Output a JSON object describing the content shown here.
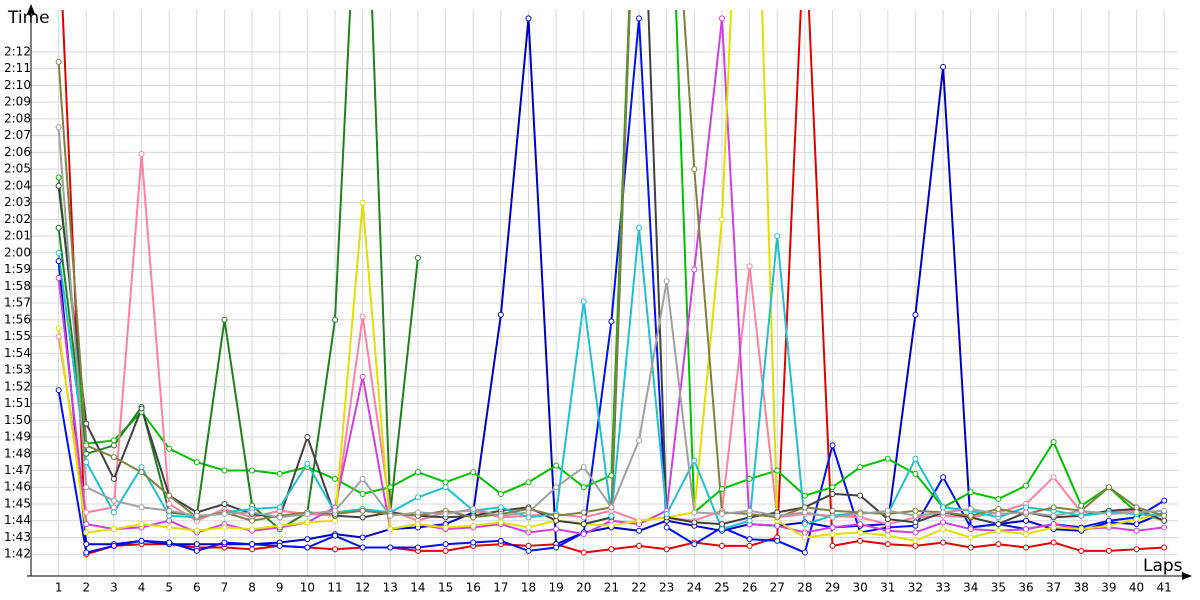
{
  "chart_data": {
    "type": "line",
    "y_label": "Time",
    "x_label": "Laps",
    "x": [
      1,
      2,
      3,
      4,
      5,
      6,
      7,
      8,
      9,
      10,
      11,
      12,
      13,
      14,
      15,
      16,
      17,
      18,
      19,
      20,
      21,
      22,
      23,
      24,
      25,
      26,
      27,
      28,
      29,
      30,
      31,
      32,
      33,
      34,
      35,
      36,
      37,
      38,
      39,
      40,
      41
    ],
    "xlim": [
      0,
      41.5
    ],
    "xticks": [
      1,
      2,
      3,
      4,
      5,
      6,
      7,
      8,
      9,
      10,
      11,
      12,
      13,
      14,
      15,
      16,
      17,
      18,
      19,
      20,
      21,
      22,
      23,
      24,
      25,
      26,
      27,
      28,
      29,
      30,
      31,
      32,
      33,
      34,
      35,
      36,
      37,
      38,
      39,
      40,
      41
    ],
    "ylim": [
      100.7,
      134.5
    ],
    "yticks": [
      {
        "value": 102,
        "label": "1:42"
      },
      {
        "value": 103,
        "label": "1:43"
      },
      {
        "value": 104,
        "label": "1:44"
      },
      {
        "value": 105,
        "label": "1:45"
      },
      {
        "value": 106,
        "label": "1:46"
      },
      {
        "value": 107,
        "label": "1:47"
      },
      {
        "value": 108,
        "label": "1:48"
      },
      {
        "value": 109,
        "label": "1:49"
      },
      {
        "value": 110,
        "label": "1:50"
      },
      {
        "value": 111,
        "label": "1:51"
      },
      {
        "value": 112,
        "label": "1:52"
      },
      {
        "value": 113,
        "label": "1:53"
      },
      {
        "value": 114,
        "label": "1:54"
      },
      {
        "value": 115,
        "label": "1:55"
      },
      {
        "value": 116,
        "label": "1:56"
      },
      {
        "value": 117,
        "label": "1:57"
      },
      {
        "value": 118,
        "label": "1:58"
      },
      {
        "value": 119,
        "label": "1:59"
      },
      {
        "value": 120,
        "label": "2:00"
      },
      {
        "value": 121,
        "label": "2:01"
      },
      {
        "value": 122,
        "label": "2:02"
      },
      {
        "value": 123,
        "label": "2:03"
      },
      {
        "value": 124,
        "label": "2:04"
      },
      {
        "value": 125,
        "label": "2:05"
      },
      {
        "value": 126,
        "label": "2:06"
      },
      {
        "value": 127,
        "label": "2:07"
      },
      {
        "value": 128,
        "label": "2:08"
      },
      {
        "value": 129,
        "label": "2:09"
      },
      {
        "value": 130,
        "label": "2:10"
      },
      {
        "value": 131,
        "label": "2:11"
      },
      {
        "value": 132,
        "label": "2:12"
      }
    ],
    "grid": true,
    "series": [
      {
        "color": "#e00000",
        "values": [
          140,
          102,
          102.5,
          102.6,
          102.6,
          102.4,
          102.4,
          102.3,
          102.5,
          102.4,
          102.3,
          102.4,
          102.4,
          102.2,
          102.2,
          102.5,
          102.6,
          102.5,
          102.6,
          102.1,
          102.3,
          102.5,
          102.3,
          102.7,
          102.5,
          102.5,
          103,
          140,
          102.5,
          102.8,
          102.6,
          102.5,
          102.7,
          102.4,
          102.6,
          102.4,
          102.7,
          102.2,
          102.2,
          102.3,
          102.4
        ]
      },
      {
        "color": "#0000c0",
        "values": [
          119.5,
          102.6,
          102.6,
          102.8,
          102.6,
          102.6,
          102.6,
          102.6,
          102.7,
          102.9,
          103.2,
          103,
          103.5,
          103.6,
          103.8,
          104.5,
          116.3,
          134,
          102.6,
          103.3,
          103.6,
          103.4,
          104,
          103.7,
          103.4,
          103.8,
          103.7,
          103.9,
          103.6,
          103.7,
          103.8,
          116.3,
          131.1,
          103.6,
          103.8,
          104,
          103.5,
          103.4,
          103.9,
          103.8,
          104.5
        ]
      },
      {
        "color": "#0010f0",
        "values": [
          111.8,
          102.1,
          102.5,
          102.8,
          102.7,
          102.2,
          102.7,
          102.6,
          102.5,
          102.4,
          103.1,
          102.4,
          102.4,
          102.4,
          102.6,
          102.7,
          102.8,
          102.2,
          102.4,
          103.3,
          115.9,
          134,
          103.6,
          102.6,
          103.6,
          102.9,
          102.8,
          102.1,
          108.5,
          103.3,
          103.6,
          103.7,
          106.6,
          103.6,
          103.8,
          103.5,
          103.8,
          103.6,
          104,
          104.2,
          105.2
        ]
      },
      {
        "color": "#00c000",
        "values": [
          124.5,
          108.6,
          108.8,
          110.5,
          108.3,
          107.5,
          107,
          107,
          106.8,
          107.2,
          106.5,
          105.6,
          106,
          106.9,
          106.3,
          106.9,
          105.6,
          106.3,
          107.3,
          106,
          106.7,
          150,
          150,
          104.5,
          105.9,
          106.5,
          107,
          105.5,
          106,
          107.2,
          107.7,
          106.8,
          104.8,
          105.7,
          105.3,
          106.1,
          108.7,
          104.9,
          106,
          104.5,
          104
        ]
      },
      {
        "color": "#208020",
        "values": [
          121.5,
          108,
          108.5,
          110.8,
          104.5,
          104.3,
          116,
          104.9,
          103.5,
          104.5,
          116,
          150,
          104.5,
          119.7,
          null,
          null,
          null,
          null,
          null,
          null,
          null,
          null,
          null,
          null,
          null,
          null,
          null,
          null,
          null,
          null,
          null,
          null,
          null,
          null,
          null,
          null,
          null,
          null,
          null,
          null,
          null
        ]
      },
      {
        "color": "#ff80a0",
        "values": [
          115,
          104.5,
          104.8,
          125.9,
          105,
          104,
          104.7,
          104.2,
          104.6,
          104.4,
          104.3,
          116.2,
          104.6,
          104,
          104.5,
          104.6,
          104.2,
          104.3,
          104.4,
          104.2,
          104.6,
          104,
          104.2,
          104,
          104.6,
          119.2,
          104.2,
          104.4,
          104.3,
          104.2,
          103.8,
          104.2,
          104.3,
          104.2,
          104.5,
          105,
          106.6,
          104.5,
          104.5,
          104.6,
          104
        ]
      },
      {
        "color": "#d040e0",
        "values": [
          118.5,
          103.8,
          103.5,
          103.6,
          104,
          103.3,
          103.8,
          103.4,
          103.6,
          103.9,
          104.8,
          112.6,
          103.5,
          103.8,
          103.5,
          103.6,
          103.8,
          103.3,
          103.5,
          103.2,
          104,
          103.8,
          104.6,
          119,
          134,
          103.8,
          103.7,
          103.3,
          103.6,
          103.8,
          103.4,
          103.3,
          103.9,
          103.5,
          103.4,
          103.5,
          103.8,
          103.5,
          103.6,
          103.4,
          103.6
        ]
      },
      {
        "color": "#e0e000",
        "values": [
          115.5,
          103.3,
          103.5,
          103.8,
          103.6,
          103.4,
          103.6,
          103.5,
          103.7,
          103.9,
          104,
          123,
          103.5,
          103.8,
          103.6,
          103.7,
          103.9,
          103.6,
          104,
          103.8,
          103.7,
          104,
          104.2,
          104.5,
          122,
          160,
          104,
          103,
          103.2,
          103.3,
          103.1,
          102.8,
          103.5,
          103,
          103.4,
          103.2,
          103.6,
          103.5,
          103.7,
          104.1,
          104.4
        ]
      },
      {
        "color": "#404040",
        "values": [
          124,
          109.8,
          106.5,
          110.7,
          105.5,
          104.5,
          105,
          104.4,
          104.2,
          109,
          104.3,
          104.2,
          104.5,
          104.3,
          104.2,
          104.3,
          104.6,
          104.8,
          104,
          103.8,
          104.2,
          150,
          104.2,
          103.9,
          103.8,
          104.2,
          104.5,
          104.8,
          105.6,
          105.5,
          104.1,
          103.9,
          104.5,
          104.2,
          103.8,
          104.5,
          104.2,
          104.3,
          104.6,
          104.7,
          104
        ]
      },
      {
        "color": "#20c0d0",
        "values": [
          120,
          107.5,
          104.5,
          107.2,
          104.3,
          104.2,
          104.5,
          104.7,
          104.8,
          107.4,
          104.5,
          104.7,
          104.5,
          105.4,
          106,
          104.6,
          104.8,
          104.2,
          104.4,
          117.1,
          104.3,
          121.5,
          104.4,
          107.6,
          103.5,
          104,
          121,
          103.8,
          104.3,
          104.5,
          104.4,
          107.7,
          104.8,
          104.6,
          104.2,
          104.8,
          104.6,
          104.3,
          104.5,
          104.4,
          104.3
        ]
      },
      {
        "color": "#808040",
        "values": [
          131.4,
          108.5,
          107.8,
          106.9,
          105.5,
          104.2,
          104.5,
          104,
          104.3,
          104.5,
          104.4,
          104.6,
          104.4,
          104.3,
          104.6,
          104.2,
          104.4,
          104.7,
          104.3,
          104.5,
          104.8,
          150,
          150,
          125,
          104.5,
          104.4,
          104.2,
          104.8,
          104.6,
          104.5,
          104.4,
          104.6,
          104.5,
          104.3,
          104.7,
          104.4,
          104.8,
          104.6,
          106,
          104.8,
          104.3
        ]
      },
      {
        "color": "#a0a0a0",
        "values": [
          127.5,
          106,
          105.2,
          104.8,
          104.6,
          104.3,
          104.4,
          104.5,
          104.2,
          104.4,
          104.6,
          106.5,
          104.3,
          104.5,
          104.4,
          104.7,
          104.3,
          104.5,
          106,
          107.2,
          104.8,
          108.8,
          118.3,
          104.5,
          104.4,
          104.6,
          104.3,
          104.5,
          104.2,
          104.4,
          104.6,
          104.3,
          104.5,
          104.7,
          104.4,
          104.5,
          104.3,
          104.6,
          104.4,
          104.5,
          104.6
        ]
      }
    ]
  }
}
